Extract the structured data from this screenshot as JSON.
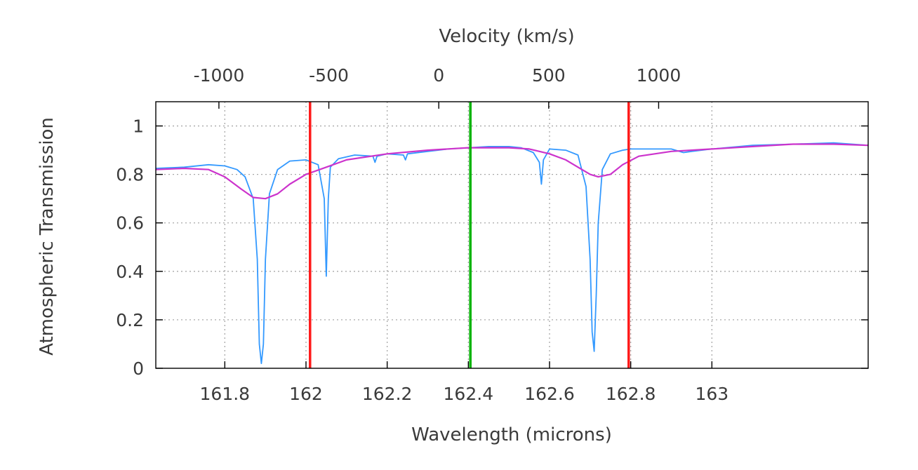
{
  "chart_data": {
    "type": "line",
    "xlabel": "Wavelength (microns)",
    "ylabel": "Atmospheric Transmission",
    "x2label": "Velocity (km/s)",
    "xlim": [
      161.63,
      163.385
    ],
    "ylim": [
      0,
      1.1
    ],
    "x2lim": [
      -1287,
      1953
    ],
    "x_ticks": [
      161.8,
      162.0,
      162.2,
      162.4,
      162.6,
      162.8,
      163.0
    ],
    "x_tick_labels": [
      "161.8",
      "162",
      "162.2",
      "162.4",
      "162.6",
      "162.8",
      "163"
    ],
    "y_ticks": [
      0,
      0.2,
      0.4,
      0.6,
      0.8,
      1.0
    ],
    "y_tick_labels": [
      "0",
      "0.2",
      "0.4",
      "0.6",
      "0.8",
      "1"
    ],
    "x2_ticks": [
      -1000,
      -500,
      0,
      500,
      1000
    ],
    "x2_tick_labels": [
      "-1000",
      "-500",
      "0",
      "500",
      "1000"
    ],
    "grid": true,
    "colors": {
      "transmission": "#3399ff",
      "smoothed": "#cc33cc",
      "boundary_lines": "#ff1a1a",
      "center_line": "#00b300"
    },
    "series": [
      {
        "style": "high-resolution transmission",
        "x": [
          161.63,
          161.7,
          161.76,
          161.8,
          161.83,
          161.85,
          161.87,
          161.88,
          161.885,
          161.89,
          161.895,
          161.9,
          161.91,
          161.93,
          161.96,
          162.0,
          162.03,
          162.045,
          162.05,
          162.055,
          162.06,
          162.08,
          162.12,
          162.165,
          162.17,
          162.175,
          162.2,
          162.24,
          162.245,
          162.25,
          162.3,
          162.35,
          162.4,
          162.45,
          162.5,
          162.53,
          162.56,
          162.575,
          162.58,
          162.585,
          162.6,
          162.64,
          162.67,
          162.69,
          162.7,
          162.705,
          162.71,
          162.715,
          162.72,
          162.73,
          162.75,
          162.78,
          162.8,
          162.85,
          162.9,
          162.93,
          162.95,
          163.0,
          163.1,
          163.2,
          163.3,
          163.385
        ],
        "y": [
          0.825,
          0.83,
          0.84,
          0.835,
          0.82,
          0.79,
          0.7,
          0.45,
          0.1,
          0.02,
          0.1,
          0.45,
          0.72,
          0.82,
          0.855,
          0.86,
          0.84,
          0.7,
          0.38,
          0.7,
          0.83,
          0.865,
          0.88,
          0.875,
          0.85,
          0.875,
          0.885,
          0.88,
          0.86,
          0.885,
          0.895,
          0.905,
          0.91,
          0.915,
          0.915,
          0.91,
          0.89,
          0.85,
          0.76,
          0.86,
          0.905,
          0.9,
          0.88,
          0.75,
          0.45,
          0.15,
          0.07,
          0.3,
          0.6,
          0.82,
          0.885,
          0.9,
          0.905,
          0.905,
          0.905,
          0.89,
          0.895,
          0.905,
          0.92,
          0.925,
          0.93,
          0.92
        ]
      },
      {
        "style": "smoothed transmission",
        "x": [
          161.63,
          161.7,
          161.76,
          161.8,
          161.84,
          161.87,
          161.9,
          161.93,
          161.96,
          162.0,
          162.05,
          162.1,
          162.2,
          162.3,
          162.4,
          162.5,
          162.55,
          162.6,
          162.64,
          162.67,
          162.7,
          162.72,
          162.75,
          162.78,
          162.82,
          162.9,
          163.0,
          163.1,
          163.2,
          163.3,
          163.385
        ],
        "y": [
          0.82,
          0.825,
          0.82,
          0.79,
          0.74,
          0.705,
          0.7,
          0.72,
          0.76,
          0.8,
          0.83,
          0.86,
          0.885,
          0.9,
          0.91,
          0.91,
          0.905,
          0.885,
          0.86,
          0.83,
          0.8,
          0.79,
          0.8,
          0.84,
          0.875,
          0.895,
          0.905,
          0.915,
          0.925,
          0.925,
          0.92
        ]
      }
    ],
    "vertical_lines": [
      {
        "x": 162.01,
        "color": "#ff1a1a"
      },
      {
        "x": 162.405,
        "color": "#00b300"
      },
      {
        "x": 162.795,
        "color": "#ff1a1a"
      }
    ]
  }
}
